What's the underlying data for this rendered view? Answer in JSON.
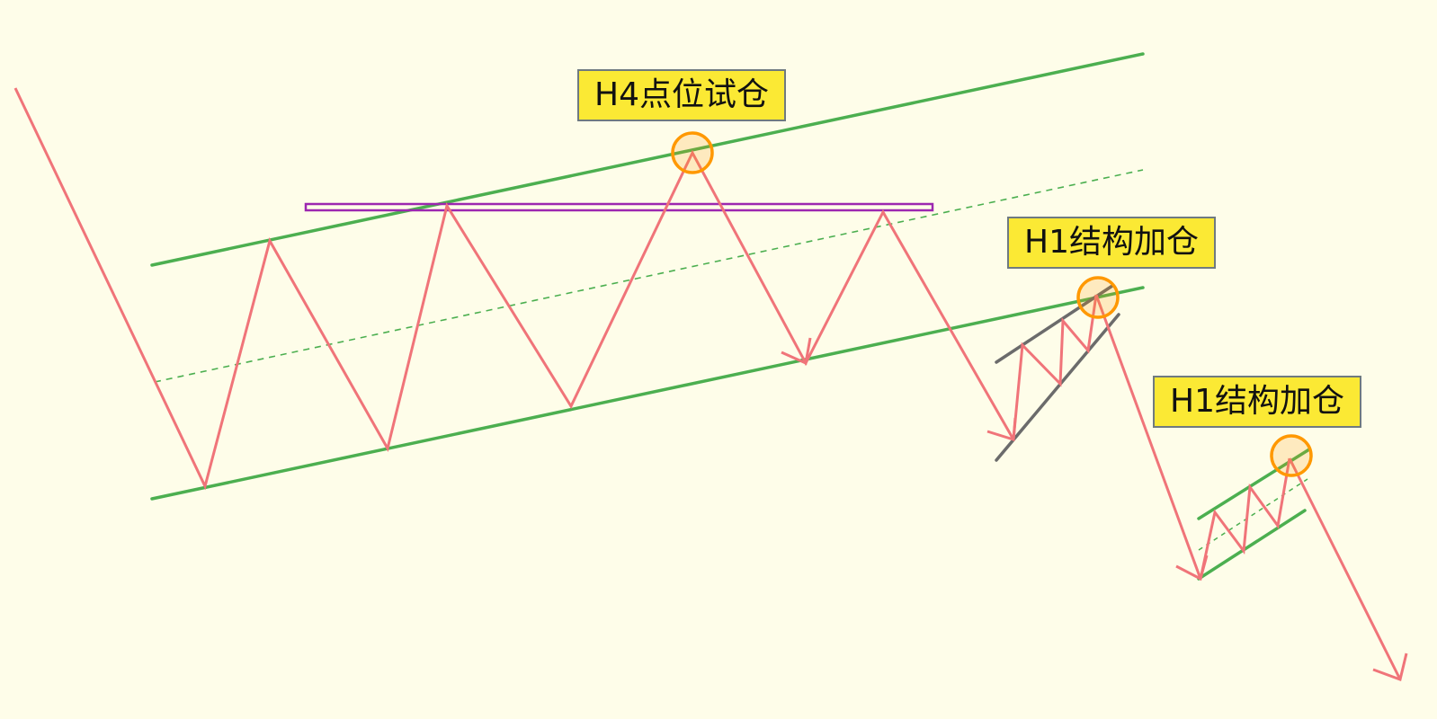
{
  "labels": {
    "h4_entry": "H4点位试仓",
    "h1_add_first": "H1结构加仓",
    "h1_add_second": "H1结构加仓"
  },
  "colors": {
    "background": "#fefde9",
    "price_path": "#f07479",
    "channel_line": "#4caf50",
    "resistance_line": "#9c27b0",
    "wedge_line": "#6b6b6b",
    "entry_marker": "#ff9800",
    "label_fill": "#fbe934",
    "label_border": "#6f7a80"
  }
}
